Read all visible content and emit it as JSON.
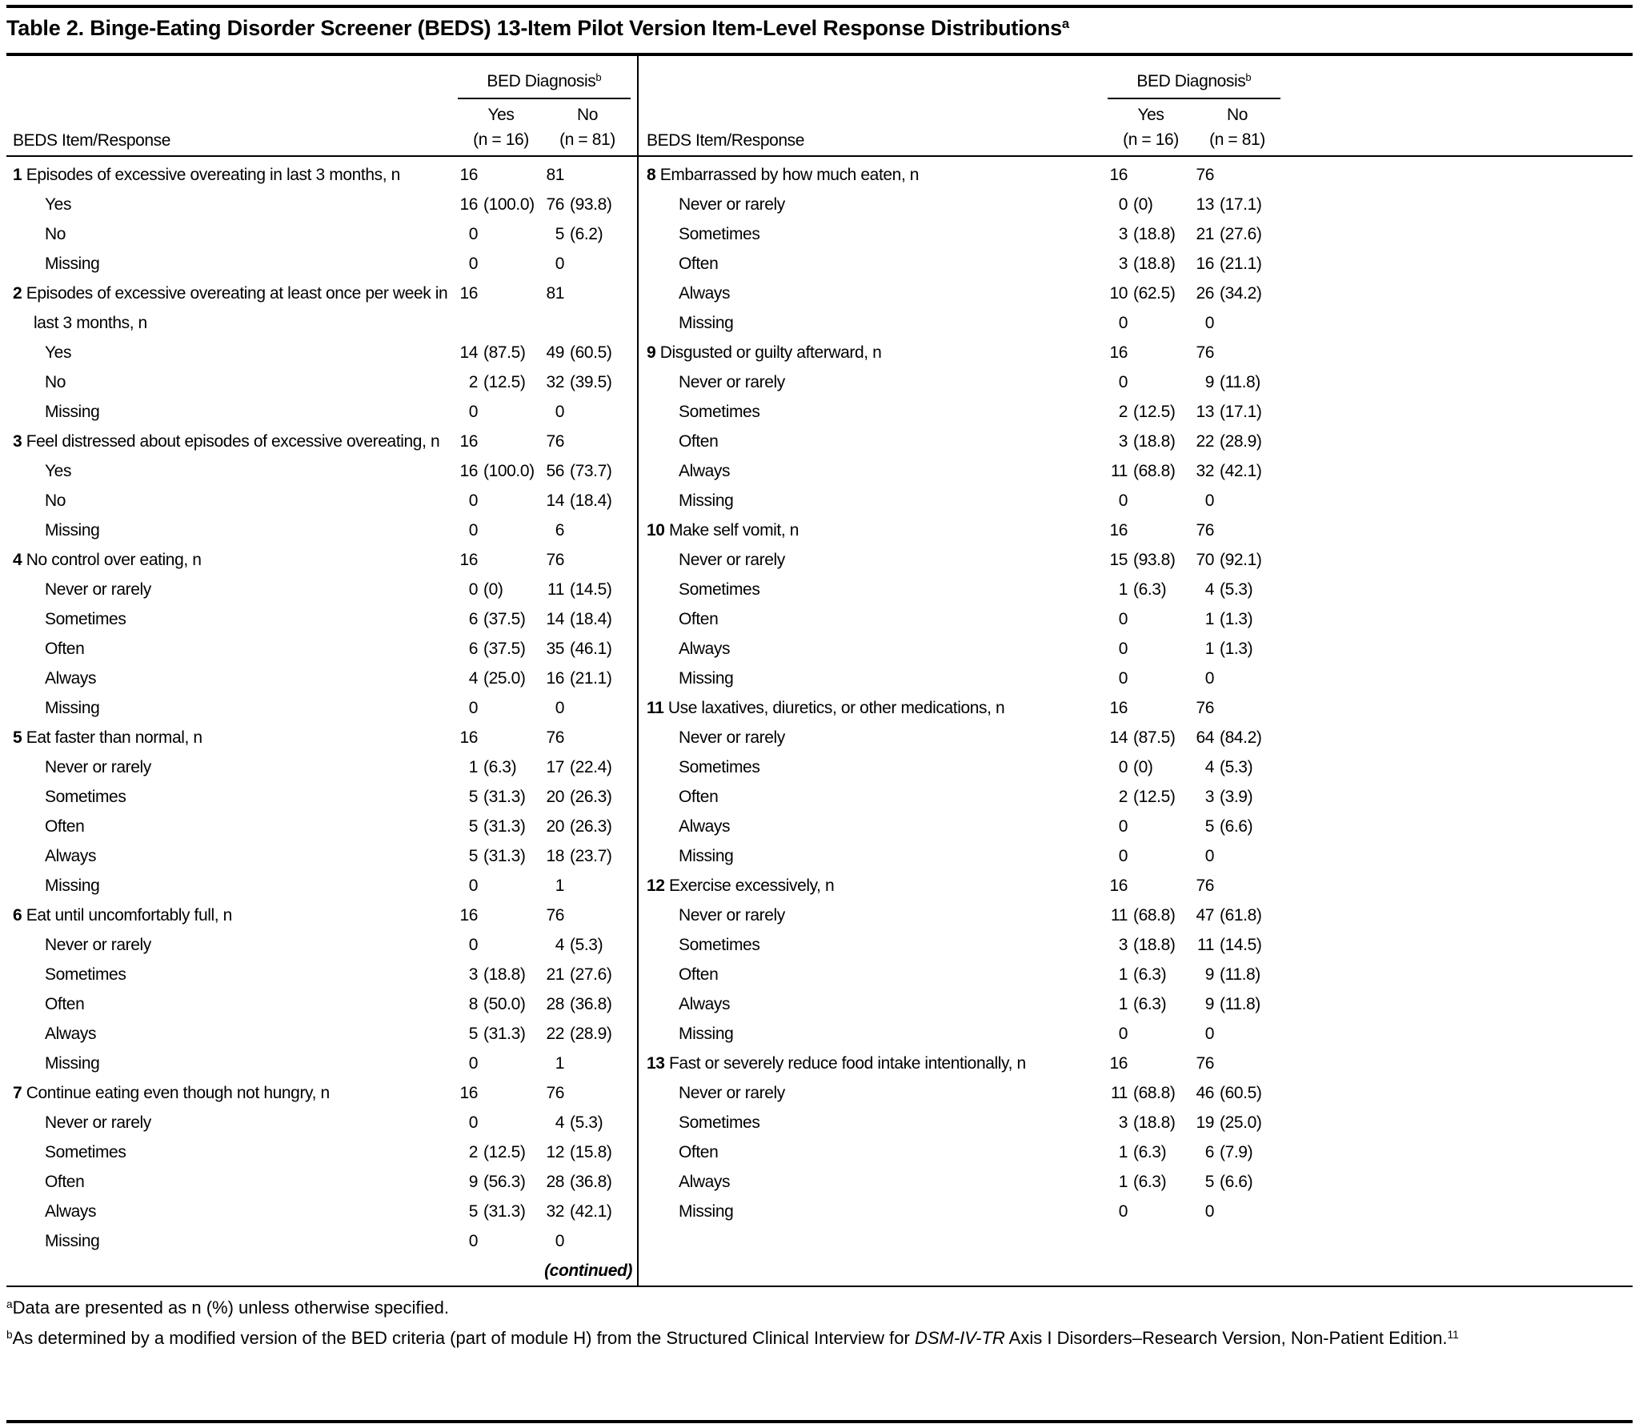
{
  "title": {
    "text": "Table 2. Binge-Eating Disorder Screener (BEDS) 13-Item Pilot Version Item-Level Response Distributions",
    "superscript": "a"
  },
  "header": {
    "item_col_label": "BEDS Item/Response",
    "group_label": "BED Diagnosis",
    "group_superscript": "b",
    "col_yes_label": "Yes",
    "col_yes_n": "(n = 16)",
    "col_no_label": "No",
    "col_no_n": "(n = 81)"
  },
  "continued_label": "(continued)",
  "panels": [
    {
      "items": [
        {
          "number": "1",
          "label": "Episodes of excessive overeating in last 3 months, n",
          "yes": "16",
          "no": "81",
          "responses": [
            {
              "label": "Yes",
              "yes": "16 (100.0)",
              "no": "76 (93.8)"
            },
            {
              "label": "No",
              "yes": "0",
              "no": "5 (6.2)"
            },
            {
              "label": "Missing",
              "yes": "0",
              "no": "0"
            }
          ]
        },
        {
          "number": "2",
          "label": "Episodes of excessive overeating at least once per week in last 3 months, n",
          "yes": "16",
          "no": "81",
          "responses": [
            {
              "label": "Yes",
              "yes": "14 (87.5)",
              "no": "49 (60.5)"
            },
            {
              "label": "No",
              "yes": "2 (12.5)",
              "no": "32 (39.5)"
            },
            {
              "label": "Missing",
              "yes": "0",
              "no": "0"
            }
          ]
        },
        {
          "number": "3",
          "label": "Feel distressed about episodes of excessive overeating, n",
          "yes": "16",
          "no": "76",
          "responses": [
            {
              "label": "Yes",
              "yes": "16 (100.0)",
              "no": "56 (73.7)"
            },
            {
              "label": "No",
              "yes": "0",
              "no": "14 (18.4)"
            },
            {
              "label": "Missing",
              "yes": "0",
              "no": "6"
            }
          ]
        },
        {
          "number": "4",
          "label": "No control over eating, n",
          "yes": "16",
          "no": "76",
          "responses": [
            {
              "label": "Never or rarely",
              "yes": "0 (0)",
              "no": "11 (14.5)"
            },
            {
              "label": "Sometimes",
              "yes": "6 (37.5)",
              "no": "14 (18.4)"
            },
            {
              "label": "Often",
              "yes": "6 (37.5)",
              "no": "35 (46.1)"
            },
            {
              "label": "Always",
              "yes": "4 (25.0)",
              "no": "16 (21.1)"
            },
            {
              "label": "Missing",
              "yes": "0",
              "no": "0"
            }
          ]
        },
        {
          "number": "5",
          "label": "Eat faster than normal, n",
          "yes": "16",
          "no": "76",
          "responses": [
            {
              "label": "Never or rarely",
              "yes": "1 (6.3)",
              "no": "17 (22.4)"
            },
            {
              "label": "Sometimes",
              "yes": "5 (31.3)",
              "no": "20 (26.3)"
            },
            {
              "label": "Often",
              "yes": "5 (31.3)",
              "no": "20 (26.3)"
            },
            {
              "label": "Always",
              "yes": "5 (31.3)",
              "no": "18 (23.7)"
            },
            {
              "label": "Missing",
              "yes": "0",
              "no": "1"
            }
          ]
        },
        {
          "number": "6",
          "label": "Eat until uncomfortably full, n",
          "yes": "16",
          "no": "76",
          "responses": [
            {
              "label": "Never or rarely",
              "yes": "0",
              "no": "4 (5.3)"
            },
            {
              "label": "Sometimes",
              "yes": "3 (18.8)",
              "no": "21 (27.6)"
            },
            {
              "label": "Often",
              "yes": "8 (50.0)",
              "no": "28 (36.8)"
            },
            {
              "label": "Always",
              "yes": "5 (31.3)",
              "no": "22 (28.9)"
            },
            {
              "label": "Missing",
              "yes": "0",
              "no": "1"
            }
          ]
        },
        {
          "number": "7",
          "label": "Continue eating even though not hungry, n",
          "yes": "16",
          "no": "76",
          "responses": [
            {
              "label": "Never or rarely",
              "yes": "0",
              "no": "4 (5.3)"
            },
            {
              "label": "Sometimes",
              "yes": "2 (12.5)",
              "no": "12 (15.8)"
            },
            {
              "label": "Often",
              "yes": "9 (56.3)",
              "no": "28 (36.8)"
            },
            {
              "label": "Always",
              "yes": "5 (31.3)",
              "no": "32 (42.1)"
            },
            {
              "label": "Missing",
              "yes": "0",
              "no": "0"
            }
          ]
        }
      ]
    },
    {
      "items": [
        {
          "number": "8",
          "label": "Embarrassed by how much eaten, n",
          "yes": "16",
          "no": "76",
          "responses": [
            {
              "label": "Never or rarely",
              "yes": "0 (0)",
              "no": "13 (17.1)"
            },
            {
              "label": "Sometimes",
              "yes": "3 (18.8)",
              "no": "21 (27.6)"
            },
            {
              "label": "Often",
              "yes": "3 (18.8)",
              "no": "16 (21.1)"
            },
            {
              "label": "Always",
              "yes": "10 (62.5)",
              "no": "26 (34.2)"
            },
            {
              "label": "Missing",
              "yes": "0",
              "no": "0"
            }
          ]
        },
        {
          "number": "9",
          "label": "Disgusted or guilty afterward, n",
          "yes": "16",
          "no": "76",
          "responses": [
            {
              "label": "Never or rarely",
              "yes": "0",
              "no": "9 (11.8)"
            },
            {
              "label": "Sometimes",
              "yes": "2 (12.5)",
              "no": "13 (17.1)"
            },
            {
              "label": "Often",
              "yes": "3 (18.8)",
              "no": "22 (28.9)"
            },
            {
              "label": "Always",
              "yes": "11 (68.8)",
              "no": "32 (42.1)"
            },
            {
              "label": "Missing",
              "yes": "0",
              "no": "0"
            }
          ]
        },
        {
          "number": "10",
          "label": "Make self vomit, n",
          "yes": "16",
          "no": "76",
          "responses": [
            {
              "label": "Never or rarely",
              "yes": "15 (93.8)",
              "no": "70 (92.1)"
            },
            {
              "label": "Sometimes",
              "yes": "1 (6.3)",
              "no": "4 (5.3)"
            },
            {
              "label": "Often",
              "yes": "0",
              "no": "1 (1.3)"
            },
            {
              "label": "Always",
              "yes": "0",
              "no": "1 (1.3)"
            },
            {
              "label": "Missing",
              "yes": "0",
              "no": "0"
            }
          ]
        },
        {
          "number": "11",
          "label": "Use laxatives, diuretics, or other medications, n",
          "yes": "16",
          "no": "76",
          "responses": [
            {
              "label": "Never or rarely",
              "yes": "14 (87.5)",
              "no": "64 (84.2)"
            },
            {
              "label": "Sometimes",
              "yes": "0 (0)",
              "no": "4 (5.3)"
            },
            {
              "label": "Often",
              "yes": "2 (12.5)",
              "no": "3 (3.9)"
            },
            {
              "label": "Always",
              "yes": "0",
              "no": "5 (6.6)"
            },
            {
              "label": "Missing",
              "yes": "0",
              "no": "0"
            }
          ]
        },
        {
          "number": "12",
          "label": "Exercise excessively, n",
          "yes": "16",
          "no": "76",
          "responses": [
            {
              "label": "Never or rarely",
              "yes": "11 (68.8)",
              "no": "47 (61.8)"
            },
            {
              "label": "Sometimes",
              "yes": "3 (18.8)",
              "no": "11 (14.5)"
            },
            {
              "label": "Often",
              "yes": "1 (6.3)",
              "no": "9 (11.8)"
            },
            {
              "label": "Always",
              "yes": "1 (6.3)",
              "no": "9 (11.8)"
            },
            {
              "label": "Missing",
              "yes": "0",
              "no": "0"
            }
          ]
        },
        {
          "number": "13",
          "label": "Fast or severely reduce food intake intentionally, n",
          "yes": "16",
          "no": "76",
          "responses": [
            {
              "label": "Never or rarely",
              "yes": "11 (68.8)",
              "no": "46 (60.5)"
            },
            {
              "label": "Sometimes",
              "yes": "3 (18.8)",
              "no": "19 (25.0)"
            },
            {
              "label": "Often",
              "yes": "1 (6.3)",
              "no": "6 (7.9)"
            },
            {
              "label": "Always",
              "yes": "1 (6.3)",
              "no": "5 (6.6)"
            },
            {
              "label": "Missing",
              "yes": "0",
              "no": "0"
            }
          ]
        }
      ]
    }
  ],
  "footnotes": [
    {
      "marker": "a",
      "segments": [
        {
          "text": "Data are presented as n (%) unless otherwise specified."
        }
      ]
    },
    {
      "marker": "b",
      "segments": [
        {
          "text": "As determined by a modified version of the BED criteria (part of module H) from the Structured Clinical Interview for "
        },
        {
          "text": "DSM-IV-TR",
          "style": "italic"
        },
        {
          "text": " Axis I Disorders–Research Version, Non-Patient Edition."
        },
        {
          "text": "11",
          "style": "sup"
        }
      ]
    }
  ]
}
